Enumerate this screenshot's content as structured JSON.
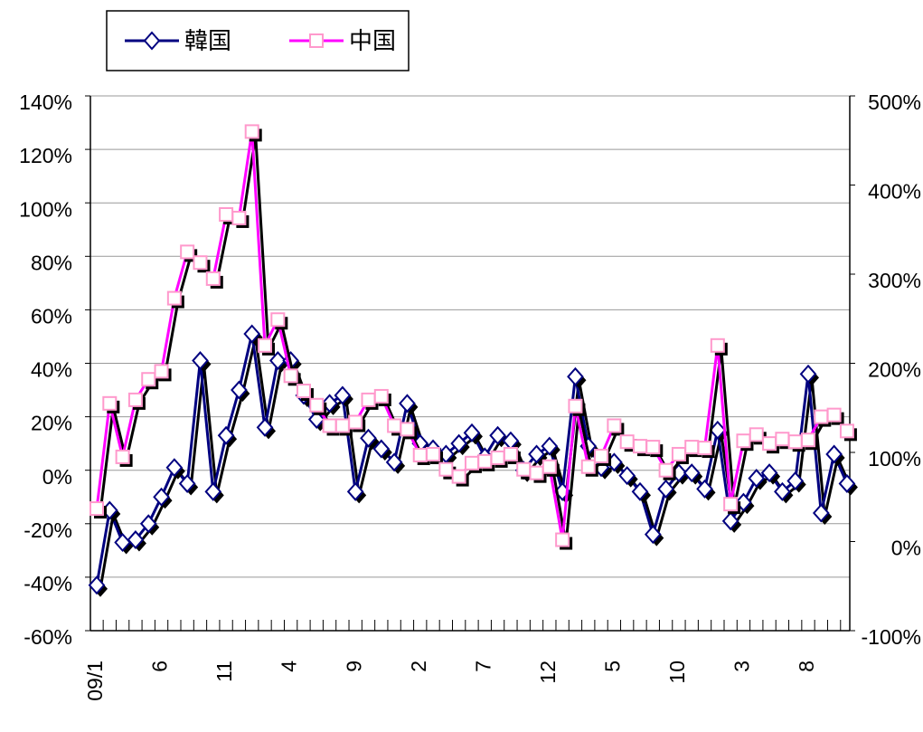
{
  "chart_data": {
    "type": "line",
    "categories": [
      "09/1",
      null,
      null,
      null,
      null,
      "6",
      null,
      null,
      null,
      null,
      "11",
      null,
      null,
      null,
      null,
      "4",
      null,
      null,
      null,
      null,
      "9",
      null,
      null,
      null,
      null,
      "2",
      null,
      null,
      null,
      null,
      "7",
      null,
      null,
      null,
      null,
      "12",
      null,
      null,
      null,
      null,
      "5",
      null,
      null,
      null,
      null,
      "10",
      null,
      null,
      null,
      null,
      "3",
      null,
      null,
      null,
      null,
      "8",
      null,
      null,
      null
    ],
    "series": [
      {
        "name": "韓国",
        "color": "#000080",
        "marker": "diamond",
        "marker_edge": "#000080",
        "values": [
          -43,
          -15,
          -27,
          -26,
          -20,
          -10,
          1,
          -5,
          41,
          -8,
          13,
          30,
          51,
          16,
          41,
          41,
          28,
          19,
          25,
          28,
          -8,
          12,
          8,
          3,
          25,
          10,
          8,
          6,
          10,
          14,
          5,
          13,
          11,
          0,
          6,
          9,
          -8,
          35,
          9,
          1,
          3,
          -2,
          -8,
          -24,
          -7,
          -1,
          -1,
          -7,
          15,
          -19,
          -12,
          -3,
          -1,
          -8,
          -4,
          36,
          -16,
          6,
          -5
        ]
      },
      {
        "name": "中国",
        "color": "#ff00ff",
        "marker": "square",
        "marker_edge": "#ff99cc",
        "axis": "y2",
        "values": [
          37,
          155,
          95,
          159,
          182,
          191,
          273,
          325,
          313,
          295,
          367,
          363,
          460,
          220,
          249,
          186,
          169,
          153,
          130,
          130,
          134,
          159,
          163,
          130,
          126,
          97,
          98,
          81,
          73,
          88,
          90,
          94,
          98,
          81,
          77,
          84,
          2,
          152,
          84,
          96,
          130,
          112,
          107,
          106,
          80,
          98,
          106,
          105,
          220,
          42,
          113,
          120,
          110,
          115,
          112,
          114,
          140,
          142,
          124
        ]
      }
    ],
    "ylim": [
      -60,
      140
    ],
    "yticks": [
      {
        "value": -60,
        "label": "-60%"
      },
      {
        "value": -40,
        "label": "-40%"
      },
      {
        "value": -20,
        "label": "-20%"
      },
      {
        "value": 0,
        "label": "0%"
      },
      {
        "value": 20,
        "label": "20%"
      },
      {
        "value": 40,
        "label": "40%"
      },
      {
        "value": 60,
        "label": "60%"
      },
      {
        "value": 80,
        "label": "80%"
      },
      {
        "value": 100,
        "label": "100%"
      },
      {
        "value": 120,
        "label": "120%"
      },
      {
        "value": 140,
        "label": "140%"
      }
    ],
    "y2lim": [
      -100,
      500
    ],
    "y2ticks": [
      {
        "value": -100,
        "label": "-100%"
      },
      {
        "value": 0,
        "label": "0%"
      },
      {
        "value": 100,
        "label": "100%"
      },
      {
        "value": 200,
        "label": "200%"
      },
      {
        "value": 300,
        "label": "300%"
      },
      {
        "value": 400,
        "label": "400%"
      },
      {
        "value": 500,
        "label": "500%"
      }
    ],
    "grid": true,
    "legend": "top"
  }
}
